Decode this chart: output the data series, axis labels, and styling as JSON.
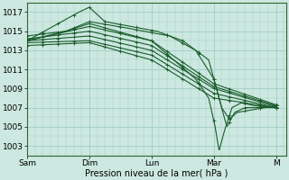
{
  "bg_color": "#cce8e0",
  "grid_color": "#a8d0c8",
  "line_color": "#1a5c2a",
  "marker_color": "#1a5c2a",
  "xlabel": "Pression niveau de la mer( hPa )",
  "yticks": [
    1003,
    1005,
    1007,
    1009,
    1011,
    1013,
    1015,
    1017
  ],
  "xtick_labels": [
    "Sam",
    "Dim",
    "Lun",
    "Mar",
    "M"
  ],
  "xtick_positions": [
    0,
    48,
    96,
    144,
    192
  ],
  "ylim": [
    1002.0,
    1018.0
  ],
  "xlim": [
    0,
    200
  ]
}
